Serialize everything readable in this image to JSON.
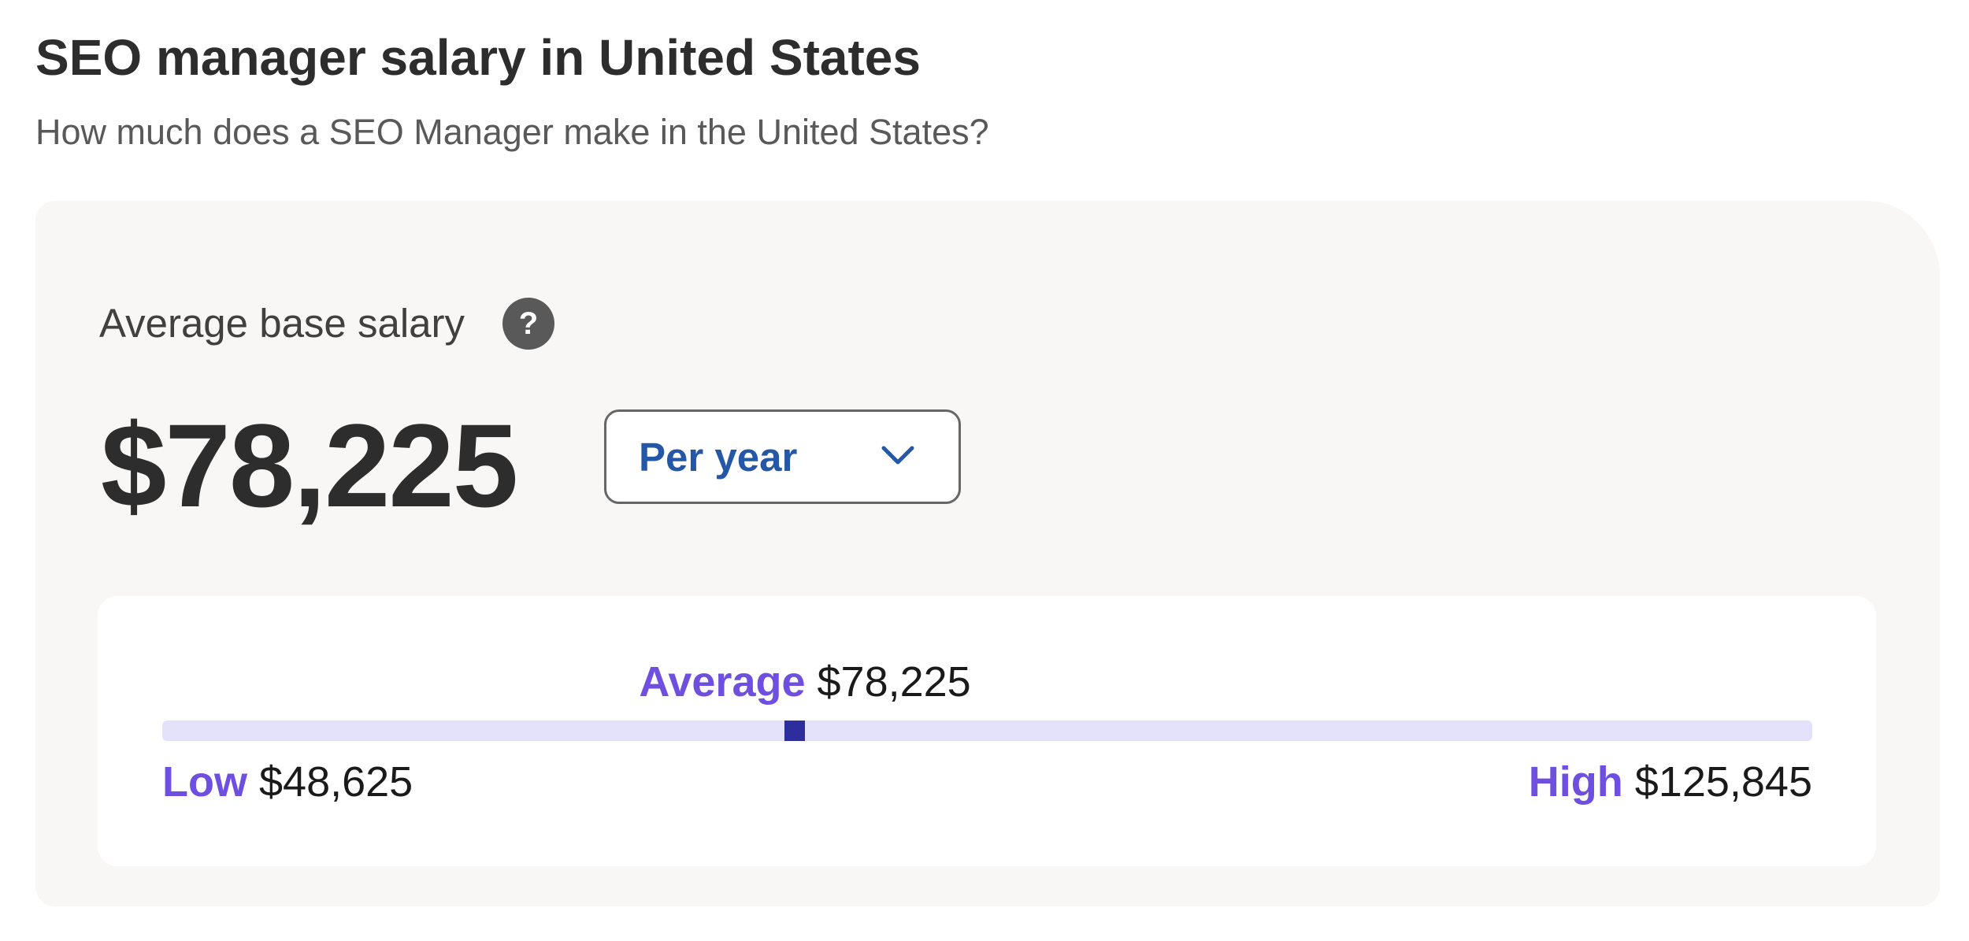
{
  "header": {
    "title": "SEO manager salary in United States",
    "subtitle": "How much does a SEO Manager make in the United States?"
  },
  "card": {
    "label": "Average base salary",
    "help": "?",
    "amount": "$78,225",
    "period": "Per year",
    "range": {
      "average": {
        "label": "Average",
        "value": 78225,
        "value_label": "$78,225"
      },
      "low": {
        "label": "Low",
        "value": 48625,
        "value_label": "$48,625"
      },
      "high": {
        "label": "High",
        "value": 125845,
        "value_label": "$125,845"
      }
    }
  }
}
